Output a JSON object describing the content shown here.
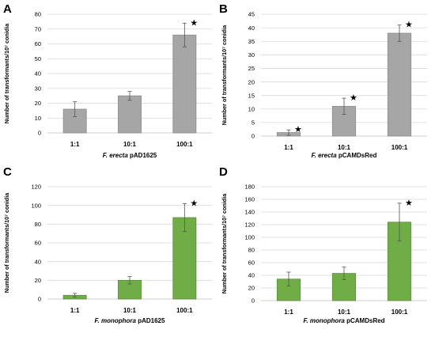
{
  "chart_data": [
    {
      "type": "bar",
      "panel_label": "A",
      "categories": [
        "1:1",
        "10:1",
        "100:1"
      ],
      "values": [
        16,
        25,
        66
      ],
      "errors": [
        5,
        3,
        8
      ],
      "significance": [
        "",
        "",
        "★"
      ],
      "xlabel_italic": "F. erecta",
      "xlabel_rest": " pAD1625",
      "ylabel": "Number of transformants/10⁷ conidia",
      "ylim": [
        0,
        80
      ],
      "yticks": [
        0,
        10,
        20,
        30,
        40,
        50,
        60,
        70,
        80
      ],
      "bar_color": "#a6a6a6",
      "bar_edge": "#8c8c8c"
    },
    {
      "type": "bar",
      "panel_label": "B",
      "categories": [
        "1:1",
        "10:1",
        "100:1"
      ],
      "values": [
        1.3,
        11,
        38
      ],
      "errors": [
        1,
        3,
        3
      ],
      "significance": [
        "★",
        "★",
        "★"
      ],
      "xlabel_italic": "F. erecta",
      "xlabel_rest": " pCAMDsRed",
      "ylabel": "Number of transformants/10⁷ conidia",
      "ylim": [
        0,
        45
      ],
      "yticks": [
        0,
        5,
        10,
        15,
        20,
        25,
        30,
        35,
        40,
        45
      ],
      "bar_color": "#a6a6a6",
      "bar_edge": "#8c8c8c"
    },
    {
      "type": "bar",
      "panel_label": "C",
      "categories": [
        "1:1",
        "10:1",
        "100:1"
      ],
      "values": [
        4,
        20,
        87
      ],
      "errors": [
        2,
        4,
        15
      ],
      "significance": [
        "",
        "",
        "★"
      ],
      "xlabel_italic": "F. monophora",
      "xlabel_rest": " pAD1625",
      "ylabel": "Number of transformants/10⁷ conidia",
      "ylim": [
        0,
        120
      ],
      "yticks": [
        0,
        20,
        40,
        60,
        80,
        100,
        120
      ],
      "bar_color": "#70ad47",
      "bar_edge": "#5a8f38"
    },
    {
      "type": "bar",
      "panel_label": "D",
      "categories": [
        "1:1",
        "10:1",
        "100:1"
      ],
      "values": [
        34,
        43,
        124
      ],
      "errors": [
        11,
        10,
        30
      ],
      "significance": [
        "",
        "",
        "★"
      ],
      "xlabel_italic": "F. monophora",
      "xlabel_rest": " pCAMDsRed",
      "ylabel": "Number of transformants/10⁷ conidia",
      "ylim": [
        0,
        180
      ],
      "yticks": [
        0,
        20,
        40,
        60,
        80,
        100,
        120,
        140,
        160,
        180
      ],
      "bar_color": "#70ad47",
      "bar_edge": "#5a8f38"
    }
  ]
}
